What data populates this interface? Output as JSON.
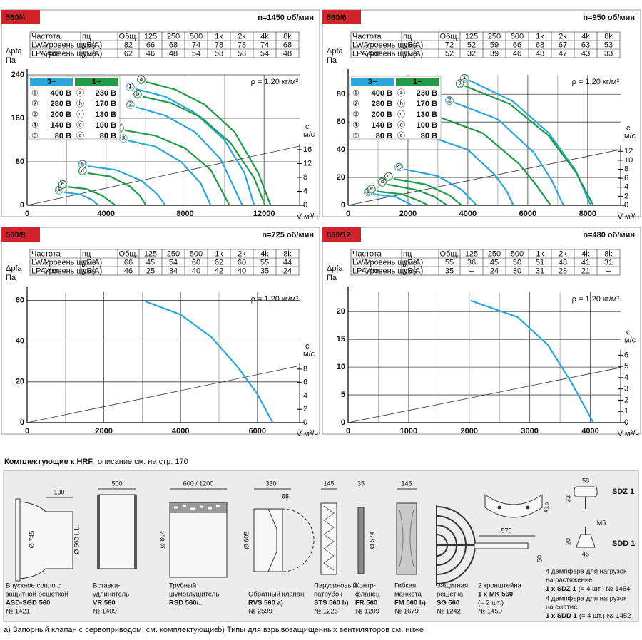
{
  "chart_data": [
    {
      "type": "line",
      "title": "560/4",
      "speed": "n=1450 об/мин",
      "table": {
        "header": [
          "Частота",
          "пц",
          "Общ.",
          "125",
          "250",
          "500",
          "1k",
          "2k",
          "4k",
          "8k"
        ],
        "rows": [
          [
            "LWA",
            "Уровень шума",
            "дБ(A)",
            82,
            66,
            68,
            74,
            78,
            78,
            74,
            68
          ],
          [
            "LPA,4m",
            "Уровень шума",
            "дБ(A)",
            62,
            46,
            48,
            54,
            58,
            58,
            54,
            48
          ]
        ]
      },
      "ylabel": [
        "Δpfa",
        "Па"
      ],
      "xlabel": "V̇ м³/ч",
      "y2label": [
        "c",
        "м/с"
      ],
      "density": "ρ = 1,20 кг/м³",
      "xlim": [
        0,
        13800
      ],
      "xticks": [
        0,
        4000,
        8000,
        12000
      ],
      "x_minor": [
        2000,
        6000,
        10000
      ],
      "ylim": [
        0,
        240
      ],
      "yticks": [
        0,
        80,
        160,
        240
      ],
      "y2lim": [
        0,
        37.5
      ],
      "y2ticks": [
        0,
        4,
        8,
        12,
        16
      ],
      "grid": true,
      "legend_titles": [
        "3~",
        "1~"
      ],
      "series": [
        {
          "name": "400 В",
          "marker": "①",
          "color": "#2aa6dd",
          "x": [
            5480,
            7000,
            8500,
            10000,
            11000,
            11500
          ],
          "values": [
            214,
            200,
            170,
            120,
            60,
            0
          ]
        },
        {
          "name": "280 В",
          "marker": "②",
          "color": "#2aa6dd",
          "x": [
            5480,
            7000,
            8500,
            9800,
            10900
          ],
          "values": [
            181,
            165,
            135,
            85,
            0
          ]
        },
        {
          "name": "200 В",
          "marker": "③",
          "color": "#2aa6dd",
          "x": [
            5120,
            6500,
            7800,
            8800,
            9300
          ],
          "values": [
            119,
            108,
            80,
            40,
            0
          ]
        },
        {
          "name": "140 В",
          "marker": "④",
          "color": "#2aa6dd",
          "x": [
            3060,
            4500,
            5800,
            6600,
            7000
          ],
          "values": [
            72,
            65,
            45,
            20,
            0
          ]
        },
        {
          "name": "80 В",
          "marker": "⑤",
          "color": "#2aa6dd",
          "x": [
            1870,
            2700,
            3300,
            3600
          ],
          "values": [
            24,
            20,
            10,
            0
          ]
        },
        {
          "name": "230 В",
          "marker": "ⓐ",
          "color": "#1f9a47",
          "x": [
            6030,
            7500,
            9000,
            10500,
            11700,
            12330
          ],
          "values": [
            227,
            213,
            185,
            135,
            60,
            0
          ]
        },
        {
          "name": "170 В",
          "marker": "ⓑ",
          "color": "#1f9a47",
          "x": [
            5850,
            7300,
            8800,
            10300,
            11500,
            12050
          ],
          "values": [
            200,
            188,
            162,
            115,
            50,
            0
          ]
        },
        {
          "name": "130 В",
          "marker": "ⓒ",
          "color": "#1f9a47",
          "x": [
            4950,
            6500,
            8000,
            9300,
            10250
          ],
          "values": [
            138,
            128,
            105,
            65,
            0
          ]
        },
        {
          "name": "100 В",
          "marker": "ⓓ",
          "color": "#1f9a47",
          "x": [
            3060,
            4200,
            5200,
            5700,
            6020
          ],
          "values": [
            59,
            53,
            35,
            18,
            0
          ]
        },
        {
          "name": "80 В",
          "marker": "ⓔ",
          "color": "#1f9a47",
          "x": [
            2050,
            3000,
            3800,
            4470
          ],
          "values": [
            34,
            30,
            18,
            0
          ]
        }
      ],
      "velocity_line": {
        "axis": "y2",
        "x": [
          0,
          13800
        ],
        "values": [
          0,
          17
        ]
      }
    },
    {
      "type": "line",
      "title": "560/6",
      "speed": "n=950 об/мин",
      "table": {
        "header": [
          "Частота",
          "пц",
          "Общ.",
          "125",
          "250",
          "500",
          "1k",
          "2k",
          "4k",
          "8k"
        ],
        "rows": [
          [
            "LWA",
            "Уровень шума",
            "дБ(A)",
            72,
            52,
            59,
            66,
            68,
            67,
            63,
            53
          ],
          [
            "LPA,4m",
            "Уровень шума",
            "дБ(A)",
            52,
            32,
            39,
            46,
            48,
            47,
            43,
            33
          ]
        ]
      },
      "ylabel": [
        "Δpfa",
        "Па"
      ],
      "xlabel": "V̇ м³/ч",
      "y2label": [
        "c",
        "м/с"
      ],
      "density": "ρ = 1,20 кг/м³",
      "xlim": [
        0,
        9100
      ],
      "xticks": [
        0,
        2000,
        4000,
        6000,
        8000
      ],
      "x_minor": [
        1000,
        3000,
        5000,
        7000
      ],
      "ylim": [
        0,
        94
      ],
      "yticks": [
        0,
        20,
        40,
        60,
        80
      ],
      "y2lim": [
        0,
        29
      ],
      "y2ticks": [
        0,
        2,
        4,
        6,
        8,
        10,
        12
      ],
      "grid": true,
      "legend_titles": [
        "3~",
        "1~"
      ],
      "series": [
        {
          "name": "400 В",
          "marker": "①",
          "color": "#2aa6dd",
          "x": [
            4050,
            5500,
            6700,
            7600,
            8100
          ],
          "values": [
            90,
            75,
            52,
            25,
            0
          ]
        },
        {
          "name": "280 В",
          "marker": "②",
          "color": "#2aa6dd",
          "x": [
            3550,
            5000,
            6200,
            6800,
            7190
          ],
          "values": [
            74,
            62,
            38,
            18,
            0
          ]
        },
        {
          "name": "200 В",
          "marker": "③",
          "color": "#2aa6dd",
          "x": [
            2670,
            4000,
            4900,
            5300,
            5520
          ],
          "values": [
            50,
            40,
            22,
            10,
            0
          ]
        },
        {
          "name": "140 В",
          "marker": "④",
          "color": "#2aa6dd",
          "x": [
            1860,
            3000,
            3800,
            4290
          ],
          "values": [
            26,
            21,
            11,
            0
          ]
        },
        {
          "name": "80 В",
          "marker": "⑤",
          "color": "#2aa6dd",
          "x": [
            830,
            1600,
            2140
          ],
          "values": [
            8,
            6,
            0
          ]
        },
        {
          "name": "230 В",
          "marker": "ⓐ",
          "color": "#1f9a47",
          "x": [
            3900,
            5400,
            6700,
            7600,
            8190
          ],
          "values": [
            86,
            73,
            50,
            24,
            0
          ]
        },
        {
          "name": "170 В",
          "marker": "ⓑ",
          "color": "#1f9a47",
          "x": [
            2980,
            4500,
            5700,
            6300,
            6760
          ],
          "values": [
            64,
            52,
            30,
            14,
            0
          ]
        },
        {
          "name": "130 В",
          "marker": "ⓒ",
          "color": "#1f9a47",
          "x": [
            1520,
            2600,
            3400,
            3790
          ],
          "values": [
            19,
            15,
            7,
            0
          ]
        },
        {
          "name": "100 В",
          "marker": "ⓓ",
          "color": "#1f9a47",
          "x": [
            1310,
            2300,
            2900,
            3310
          ],
          "values": [
            15,
            11,
            6,
            0
          ]
        },
        {
          "name": "80 В",
          "marker": "ⓔ",
          "color": "#1f9a47",
          "x": [
            950,
            1800,
            2400,
            2670
          ],
          "values": [
            10,
            8,
            3,
            0
          ]
        }
      ],
      "velocity_line": {
        "axis": "y2",
        "x": [
          0,
          9100
        ],
        "values": [
          0,
          12.4
        ]
      }
    },
    {
      "type": "line",
      "title": "560/8",
      "speed": "n=725 об/мин",
      "table": {
        "header": [
          "Частота",
          "пц",
          "Общ.",
          "125",
          "250",
          "500",
          "1k",
          "2k",
          "4k",
          "8k"
        ],
        "rows": [
          [
            "LWA",
            "Уровень шума",
            "дБ(A)",
            66,
            45,
            54,
            60,
            62,
            60,
            55,
            44
          ],
          [
            "LPA,4m",
            "Уровень шума",
            "дБ(A)",
            46,
            25,
            34,
            40,
            42,
            40,
            35,
            24
          ]
        ]
      },
      "ylabel": [
        "Δpfa",
        "Па"
      ],
      "xlabel": "V̇ м³/ч",
      "y2label": [
        "c",
        "м/с"
      ],
      "density": "ρ = 1,20 кг/м³",
      "xlim": [
        0,
        7100
      ],
      "xticks": [
        0,
        2000,
        4000,
        6000
      ],
      "x_minor": [
        1000,
        3000,
        5000
      ],
      "ylim": [
        0,
        64
      ],
      "yticks": [
        0,
        20,
        40,
        60
      ],
      "y2lim": [
        0,
        19.5
      ],
      "y2ticks": [
        0,
        2,
        4,
        6,
        8
      ],
      "grid": true,
      "series": [
        {
          "color": "#2aa6dd",
          "x": [
            3080,
            4000,
            4800,
            5500,
            6000,
            6400
          ],
          "values": [
            59.5,
            53,
            42,
            27,
            14,
            0
          ]
        }
      ],
      "velocity_line": {
        "axis": "y2",
        "x": [
          0,
          7100
        ],
        "values": [
          0,
          8.5
        ]
      }
    },
    {
      "type": "line",
      "title": "560/12",
      "speed": "n=480 об/мин",
      "table": {
        "header": [
          "Частота",
          "пц",
          "Общ.",
          "125",
          "250",
          "500",
          "1k",
          "2k",
          "4k",
          "8k"
        ],
        "rows": [
          [
            "LWA",
            "Уровень шума",
            "дБ(A)",
            55,
            36,
            45,
            50,
            51,
            48,
            41,
            31
          ],
          [
            "LPA,4m",
            "Уровень шума",
            "дБ(A)",
            35,
            "–",
            24,
            30,
            31,
            28,
            21,
            "–"
          ]
        ]
      },
      "ylabel": [
        "Δpfa",
        "Па"
      ],
      "xlabel": "V̇ м³/ч",
      "y2label": [
        "c",
        "м/с"
      ],
      "density": "ρ = 1,20 кг/м³",
      "xlim": [
        0,
        4500
      ],
      "xticks": [
        0,
        1000,
        2000,
        3000,
        4000
      ],
      "x_minor": [
        500,
        1500,
        2500,
        3500
      ],
      "ylim": [
        0,
        23.5
      ],
      "yticks": [
        0,
        5,
        10,
        15,
        20
      ],
      "y2lim": [
        0,
        11.6
      ],
      "y2ticks": [
        0,
        1,
        2,
        3,
        4,
        5,
        6
      ],
      "grid": true,
      "series": [
        {
          "color": "#2aa6dd",
          "x": [
            2020,
            2800,
            3300,
            3700,
            4050
          ],
          "values": [
            22,
            19,
            14,
            7,
            0
          ]
        }
      ],
      "velocity_line": {
        "axis": "y2",
        "x": [
          0,
          4500
        ],
        "values": [
          0,
          4.9
        ]
      }
    }
  ],
  "accessories": {
    "title": "Комплектующие к HRF,",
    "subtitle": "описание см.  на стр. 170",
    "items": [
      {
        "dims": [
          "130",
          "Ø 745",
          "Ø 560 i. L."
        ],
        "caption": [
          "Впускное сопло с",
          "защитной решеткой"
        ],
        "model": "ASD-SGD 560",
        "after": [
          "№ 1421"
        ]
      },
      {
        "dims": [
          "500"
        ],
        "caption": [
          "Вставка-",
          "удлинитель"
        ],
        "model": "VR 560",
        "after": [
          "№ 1409"
        ]
      },
      {
        "dims": [
          "600 / 1200",
          "Ø 804"
        ],
        "caption": [
          "Трубный",
          "шумоглушитель"
        ],
        "model": "RSD 560/..",
        "after": []
      },
      {
        "dims": [
          "330",
          "65",
          "Ø 605"
        ],
        "caption": [
          "Обратный клапан"
        ],
        "model": "RVS 560 a)",
        "after": [
          "№ 2599"
        ]
      },
      {
        "dims": [
          "145"
        ],
        "caption": [
          "Парусиновый",
          "патрубок"
        ],
        "model": "STS 560 b)",
        "after": [
          "№ 1226"
        ]
      },
      {
        "dims": [
          "35",
          "Ø 574"
        ],
        "caption": [
          "Контр-",
          "фланец"
        ],
        "model": "FR 560",
        "after": [
          "№ 1209"
        ]
      },
      {
        "dims": [
          "145"
        ],
        "caption": [
          "Гибкая",
          "манжета"
        ],
        "model": "FM 560 b)",
        "after": [
          "№ 1679"
        ]
      },
      {
        "caption": [
          "Защитная",
          "решетка"
        ],
        "model": "SG 560",
        "after": [
          "№ 1242"
        ]
      },
      {
        "dims": [
          "415",
          "570",
          "50"
        ],
        "caption": [
          "2 кронштейна"
        ],
        "model": "1 x MK 560",
        "after": [
          "(= 2 шт.)",
          "№ 1450"
        ]
      }
    ],
    "dampers": {
      "labels": [
        "SDZ 1",
        "SDD 1"
      ],
      "dims": [
        "58",
        "33",
        "M6",
        "20",
        "45"
      ],
      "groups": [
        {
          "caption": [
            "4 демпфера для нагрузок",
            "на растяжение"
          ],
          "model": "1 x SDZ 1",
          "after": "(= 4 шт.) № 1454"
        },
        {
          "caption": [
            "4 демпфера для нагрузок",
            "на сжатие"
          ],
          "model": "1 x SDD 1",
          "after": "(= 4 шт.) № 1452"
        }
      ]
    },
    "footnotes": [
      "a) Запорный клапан с сервоприводом, см. комплектующие",
      "b) Типы для взрывозащищенных вентиляторов см. ниже"
    ]
  }
}
